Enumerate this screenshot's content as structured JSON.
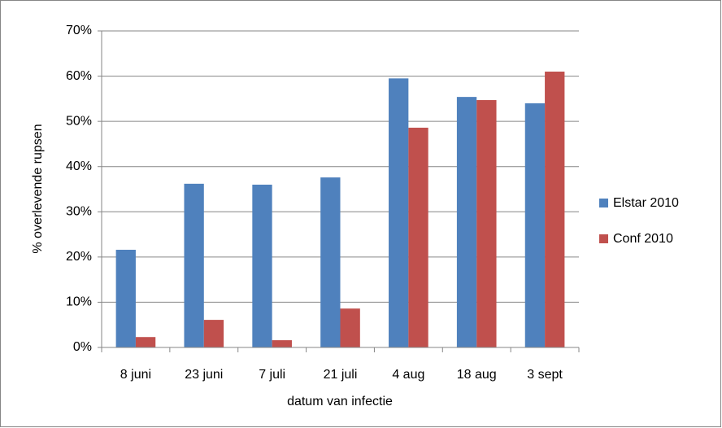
{
  "chart_data": {
    "type": "bar",
    "x_label": "datum van infectie",
    "y_label": "% overlevende rupsen",
    "categories": [
      "8 juni",
      "23 juni",
      "7 juli",
      "21 juli",
      "4 aug",
      "18 aug",
      "3 sept"
    ],
    "series": [
      {
        "name": "Elstar 2010",
        "color": "#4f81bd",
        "values": [
          21.6,
          36.2,
          36.0,
          37.6,
          59.5,
          55.4,
          54.0
        ]
      },
      {
        "name": "Conf 2010",
        "color": "#c0504d",
        "values": [
          2.3,
          6.1,
          1.6,
          8.6,
          48.6,
          54.7,
          61.0
        ]
      }
    ],
    "ylim": [
      0,
      70
    ],
    "yticks": [
      {
        "value": 0,
        "label": "0%"
      },
      {
        "value": 10,
        "label": "10%"
      },
      {
        "value": 20,
        "label": "20%"
      },
      {
        "value": 30,
        "label": "30%"
      },
      {
        "value": 40,
        "label": "40%"
      },
      {
        "value": 50,
        "label": "50%"
      },
      {
        "value": 60,
        "label": "60%"
      },
      {
        "value": 70,
        "label": "70%"
      }
    ],
    "grid": true,
    "legend": "right"
  }
}
